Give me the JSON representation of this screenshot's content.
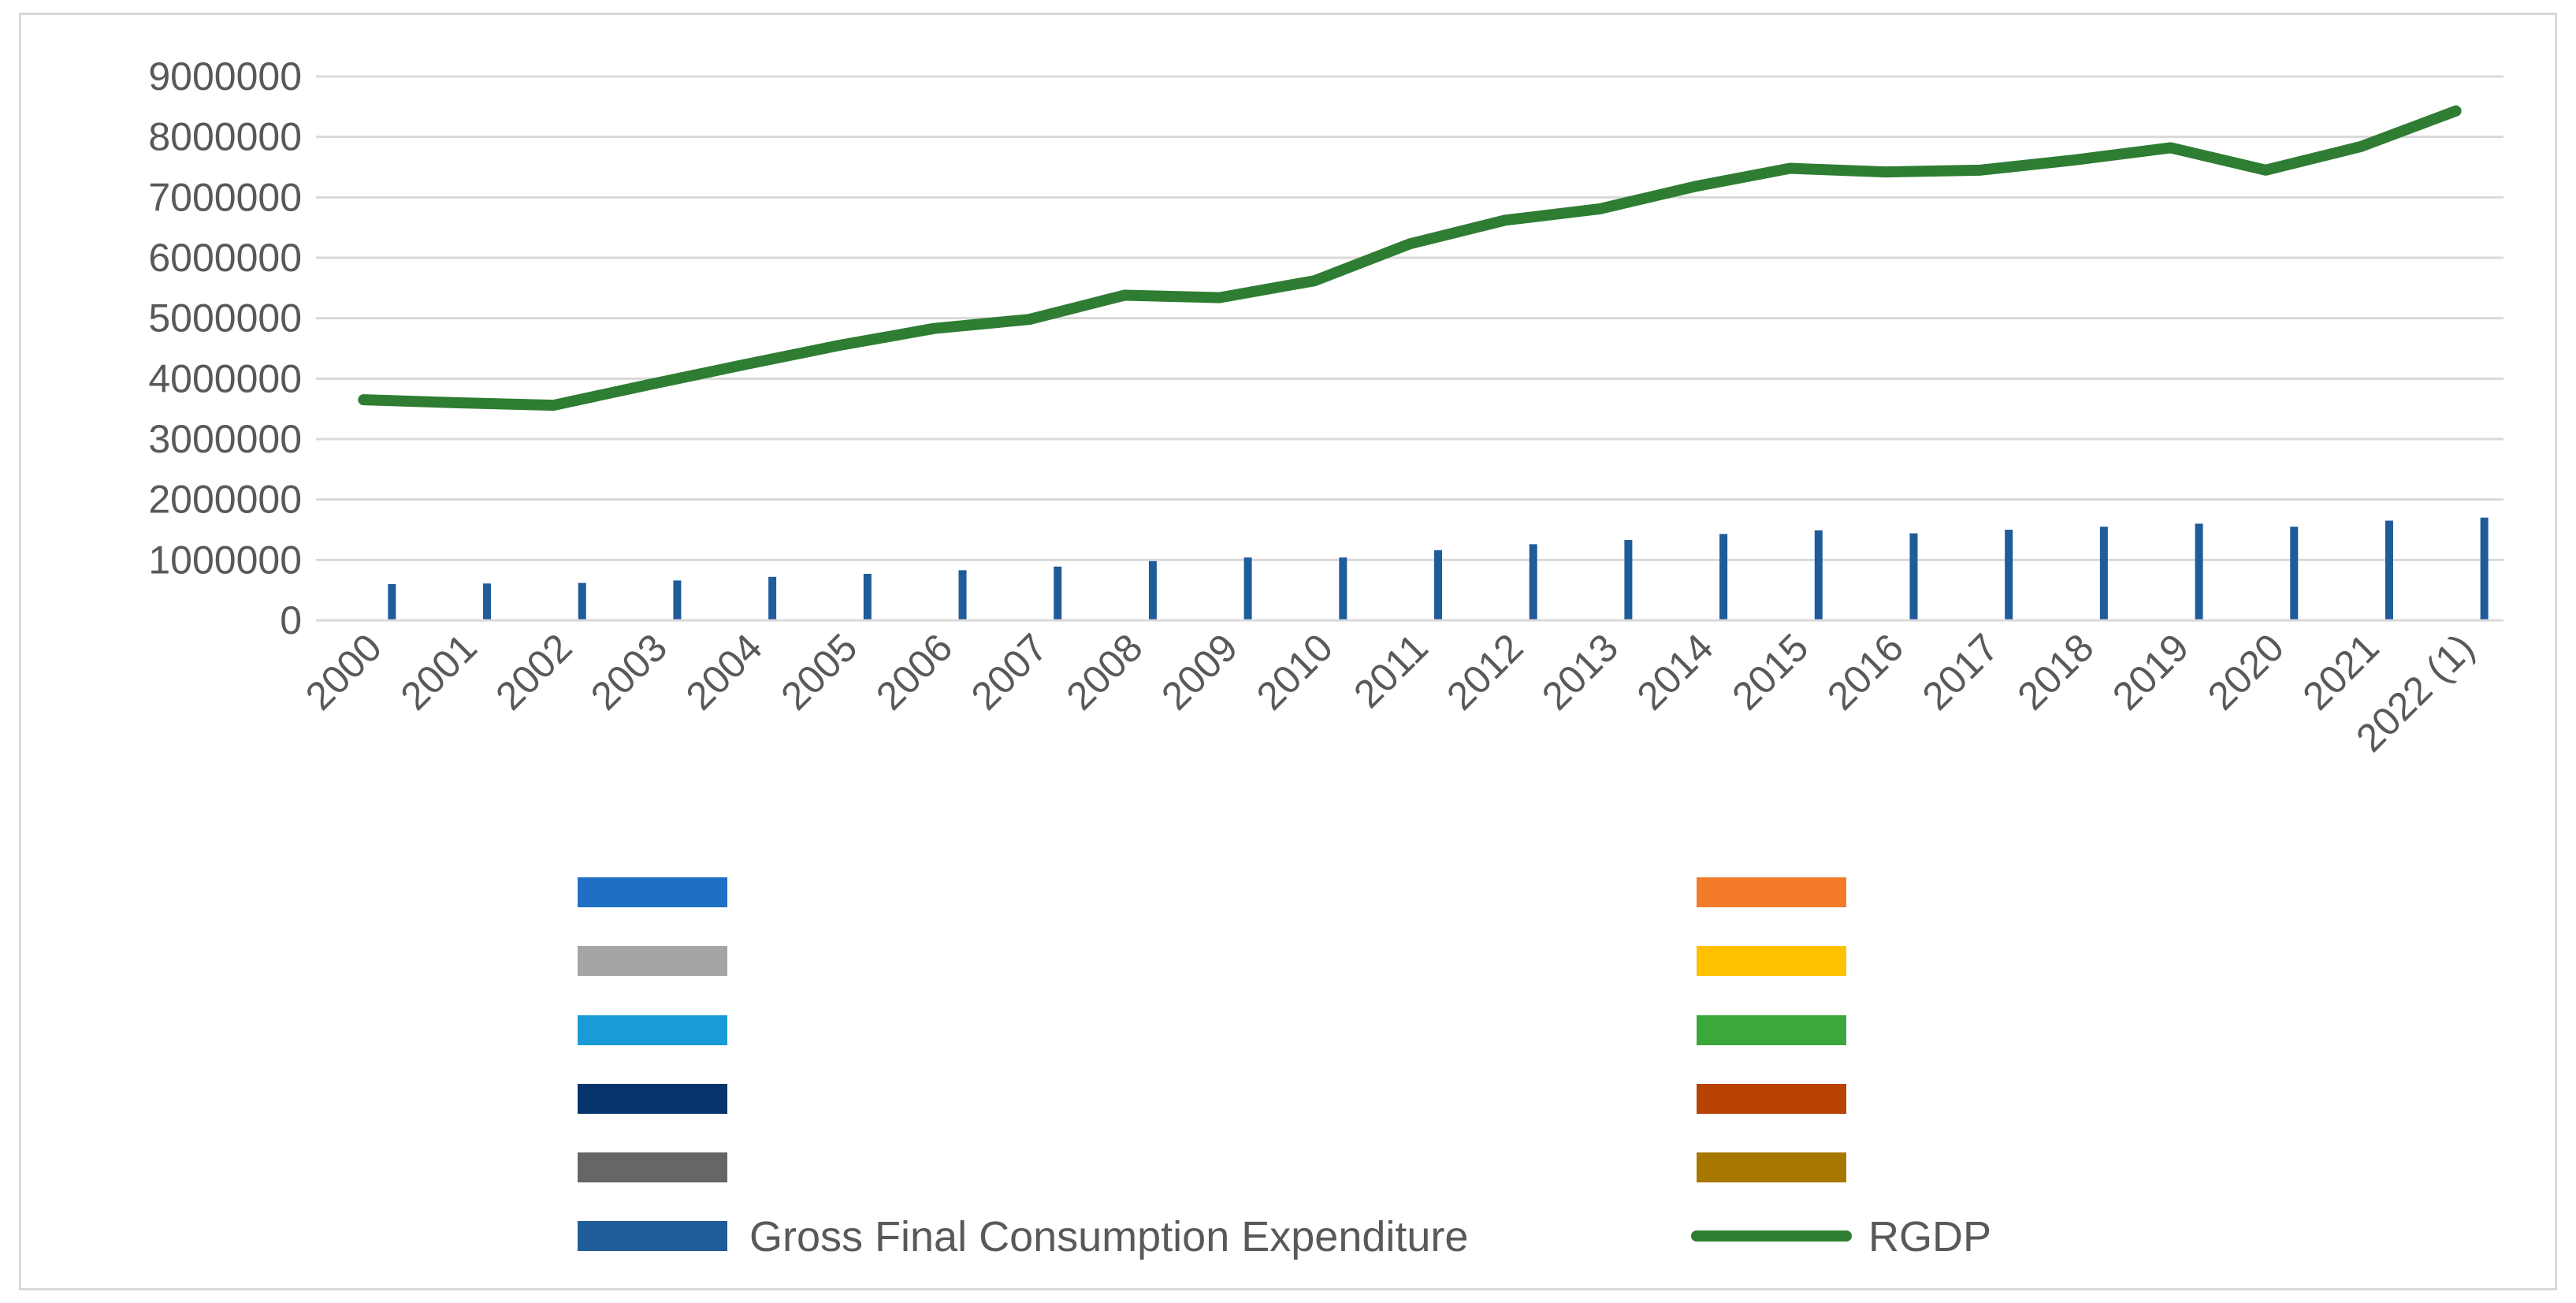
{
  "chart_data": {
    "type": "bar+line",
    "title": "",
    "xlabel": "",
    "ylabel": "",
    "ylim": [
      0,
      9000000
    ],
    "ytick_step": 1000000,
    "yticks": [
      "0",
      "1000000",
      "2000000",
      "3000000",
      "4000000",
      "5000000",
      "6000000",
      "7000000",
      "8000000",
      "9000000"
    ],
    "grid": true,
    "categories": [
      "2000",
      "2001",
      "2002",
      "2003",
      "2004",
      "2005",
      "2006",
      "2007",
      "2008",
      "2009",
      "2010",
      "2011",
      "2012",
      "2013",
      "2014",
      "2015",
      "2016",
      "2017",
      "2018",
      "2019",
      "2020",
      "2021",
      "2022 (1)"
    ],
    "series": [
      {
        "name": "Gross Final Consumption Expenditure",
        "kind": "bar",
        "color": "#1f5c99",
        "values": [
          600000,
          610000,
          620000,
          660000,
          720000,
          770000,
          830000,
          890000,
          980000,
          1040000,
          1040000,
          1160000,
          1260000,
          1330000,
          1430000,
          1490000,
          1440000,
          1500000,
          1550000,
          1600000,
          1550000,
          1650000,
          1700000
        ]
      },
      {
        "name": "RGDP",
        "kind": "line",
        "color": "#2e7d32",
        "values": [
          3650000,
          3600000,
          3560000,
          3900000,
          4230000,
          4550000,
          4830000,
          4980000,
          5380000,
          5340000,
          5620000,
          6230000,
          6620000,
          6810000,
          7180000,
          7480000,
          7420000,
          7450000,
          7620000,
          7820000,
          7450000,
          7840000,
          8430000
        ]
      }
    ],
    "legend": {
      "position": "bottom",
      "entries": [
        {
          "label": "",
          "color": "#1f6fc6",
          "kind": "bar"
        },
        {
          "label": "",
          "color": "#f47b29",
          "kind": "bar"
        },
        {
          "label": "",
          "color": "#a5a5a5",
          "kind": "bar"
        },
        {
          "label": "",
          "color": "#ffc000",
          "kind": "bar"
        },
        {
          "label": "",
          "color": "#1b9ad8",
          "kind": "bar"
        },
        {
          "label": "",
          "color": "#3aa83a",
          "kind": "bar"
        },
        {
          "label": "",
          "color": "#07356b",
          "kind": "bar"
        },
        {
          "label": "",
          "color": "#b84204",
          "kind": "bar"
        },
        {
          "label": "",
          "color": "#666666",
          "kind": "bar"
        },
        {
          "label": "",
          "color": "#a67800",
          "kind": "bar"
        },
        {
          "label": "Gross Final Consumption Expenditure",
          "color": "#1f5c99",
          "kind": "bar"
        },
        {
          "label": "RGDP",
          "color": "#2e7d32",
          "kind": "line"
        }
      ]
    }
  }
}
